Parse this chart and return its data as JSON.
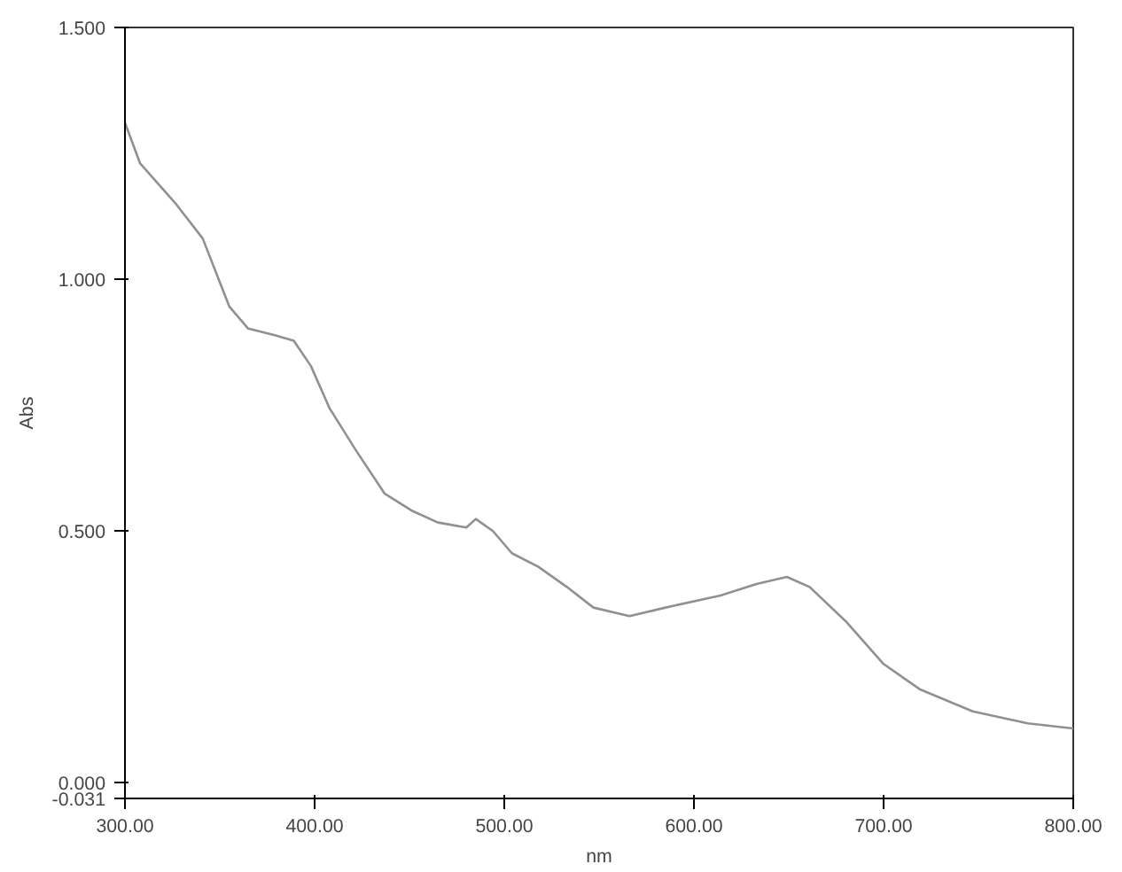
{
  "chart_data": {
    "type": "line",
    "xlabel": "nm",
    "ylabel": "Abs",
    "x": [
      300,
      308,
      327,
      341,
      355,
      365,
      379,
      389,
      398,
      408,
      422,
      437,
      451,
      465,
      480,
      485,
      494,
      504,
      518,
      533,
      547,
      566,
      585,
      614,
      633,
      649,
      661,
      680,
      700,
      719,
      747,
      776,
      800
    ],
    "series": [
      {
        "color": "#909090",
        "values": [
          1.311,
          1.23,
          1.149,
          1.081,
          0.946,
          0.902,
          0.889,
          0.878,
          0.828,
          0.743,
          0.659,
          0.574,
          0.541,
          0.517,
          0.507,
          0.524,
          0.5,
          0.456,
          0.429,
          0.389,
          0.348,
          0.331,
          0.348,
          0.372,
          0.395,
          0.409,
          0.389,
          0.321,
          0.236,
          0.186,
          0.142,
          0.118,
          0.108
        ]
      }
    ],
    "xlim": [
      300,
      800
    ],
    "xticks": [
      {
        "value": 300,
        "label": "300.00"
      },
      {
        "value": 400,
        "label": "400.00"
      },
      {
        "value": 500,
        "label": "500.00"
      },
      {
        "value": 600,
        "label": "600.00"
      },
      {
        "value": 700,
        "label": "700.00"
      },
      {
        "value": 800,
        "label": "800.00"
      }
    ],
    "ylim": [
      -0.031,
      1.5
    ],
    "yticks": [
      {
        "value": -0.031,
        "label": "-0.031"
      },
      {
        "value": 0,
        "label": "0.000"
      },
      {
        "value": 0.5,
        "label": "0.500"
      },
      {
        "value": 1.0,
        "label": "1.000"
      },
      {
        "value": 1.5,
        "label": "1.500"
      }
    ],
    "grid": false,
    "marker": "none",
    "line_style": "solid"
  }
}
